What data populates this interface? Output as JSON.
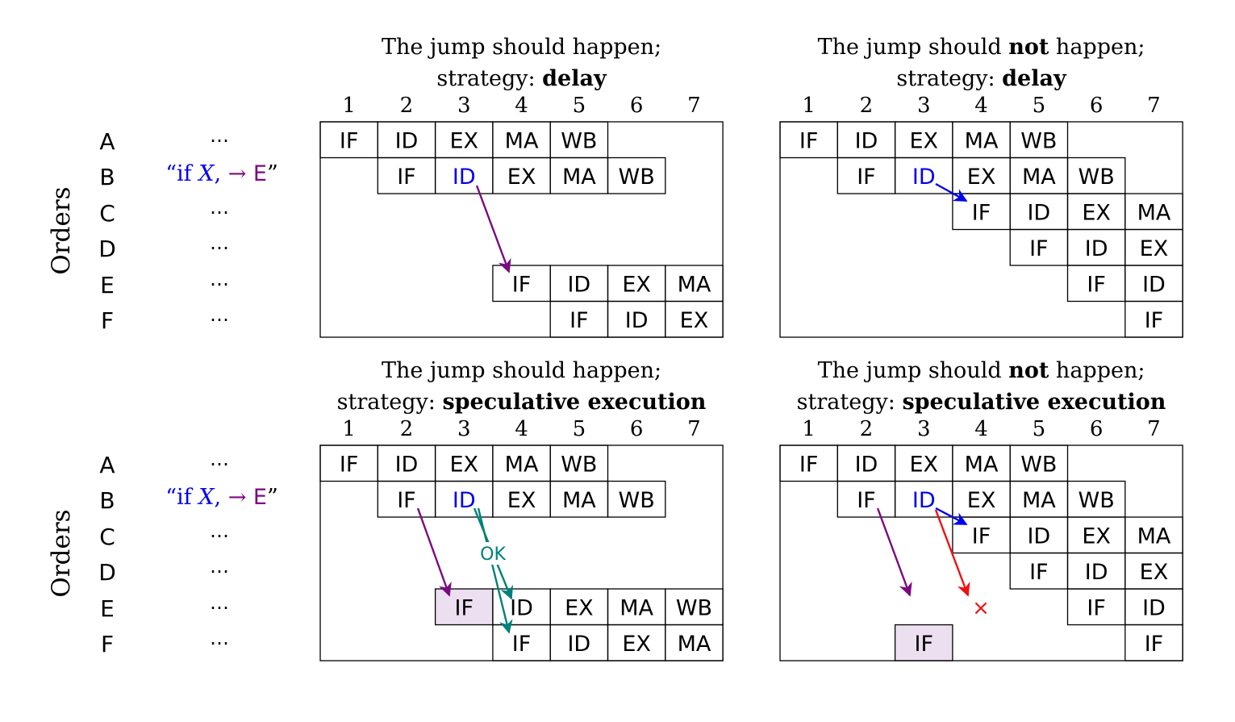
{
  "colors": {
    "blue": "#0000ee",
    "purple": "#7b0a80",
    "teal": "#00807a",
    "red": "#ee1111",
    "highlight": "#ecdff0",
    "black": "#000000"
  },
  "row_labels": [
    "A",
    "B",
    "C",
    "D",
    "E",
    "F"
  ],
  "y_axis_label": "Orders",
  "instructions": {
    "ellipsis": "⋯",
    "branch": {
      "open_quote": "“",
      "if": "if",
      "x": "X",
      "comma": ",",
      "arrow": "→",
      "target": "E",
      "close_quote": "”"
    }
  },
  "columns": [
    "1",
    "2",
    "3",
    "4",
    "5",
    "6",
    "7"
  ],
  "panels": [
    {
      "id": "tl",
      "title_line1_pre": "The jump should ",
      "title_line1_bold": "",
      "title_line1_post": "happen;",
      "title_line2_pre": "strategy: ",
      "title_line2_bold": "delay",
      "stages": [
        [
          "IF",
          "ID",
          "EX",
          "MA",
          "WB",
          "",
          ""
        ],
        [
          "",
          "IF",
          "ID",
          "EX",
          "MA",
          "WB",
          ""
        ],
        [
          "",
          "",
          "",
          "",
          "",
          "",
          ""
        ],
        [
          "",
          "",
          "",
          "",
          "",
          "",
          ""
        ],
        [
          "",
          "",
          "",
          "IF",
          "ID",
          "EX",
          "MA"
        ],
        [
          "",
          "",
          "",
          "",
          "IF",
          "ID",
          "EX"
        ]
      ],
      "blue_cell": [
        1,
        2
      ],
      "highlight_cell": null,
      "annotations": []
    },
    {
      "id": "tr",
      "title_line1_pre": "The jump should ",
      "title_line1_bold": "not",
      "title_line1_post": " happen;",
      "title_line2_pre": "strategy: ",
      "title_line2_bold": "delay",
      "stages": [
        [
          "IF",
          "ID",
          "EX",
          "MA",
          "WB",
          "",
          ""
        ],
        [
          "",
          "IF",
          "ID",
          "EX",
          "MA",
          "WB",
          ""
        ],
        [
          "",
          "",
          "",
          "IF",
          "ID",
          "EX",
          "MA"
        ],
        [
          "",
          "",
          "",
          "",
          "IF",
          "ID",
          "EX"
        ],
        [
          "",
          "",
          "",
          "",
          "",
          "IF",
          "ID"
        ],
        [
          "",
          "",
          "",
          "",
          "",
          "",
          "IF"
        ]
      ],
      "blue_cell": [
        1,
        2
      ],
      "highlight_cell": null,
      "annotations": []
    },
    {
      "id": "bl",
      "title_line1_pre": "The jump should ",
      "title_line1_bold": "",
      "title_line1_post": "happen;",
      "title_line2_pre": "strategy: ",
      "title_line2_bold": "speculative execution",
      "stages": [
        [
          "IF",
          "ID",
          "EX",
          "MA",
          "WB",
          "",
          ""
        ],
        [
          "",
          "IF",
          "ID",
          "EX",
          "MA",
          "WB",
          ""
        ],
        [
          "",
          "",
          "",
          "",
          "",
          "",
          ""
        ],
        [
          "",
          "",
          "",
          "",
          "",
          "",
          ""
        ],
        [
          "",
          "",
          "IF",
          "ID",
          "EX",
          "MA",
          "WB"
        ],
        [
          "",
          "",
          "",
          "IF",
          "ID",
          "EX",
          "MA"
        ]
      ],
      "blue_cell": [
        1,
        2
      ],
      "highlight_cell": [
        4,
        2
      ],
      "annotations": [
        "OK"
      ]
    },
    {
      "id": "br",
      "title_line1_pre": "The jump should ",
      "title_line1_bold": "not",
      "title_line1_post": " happen;",
      "title_line2_pre": "strategy: ",
      "title_line2_bold": "speculative execution",
      "stages": [
        [
          "IF",
          "ID",
          "EX",
          "MA",
          "WB",
          "",
          ""
        ],
        [
          "",
          "IF",
          "ID",
          "EX",
          "MA",
          "WB",
          ""
        ],
        [
          "",
          "",
          "",
          "IF",
          "ID",
          "EX",
          "MA"
        ],
        [
          "",
          "",
          "",
          "",
          "IF",
          "ID",
          "EX"
        ],
        [
          "",
          "",
          "",
          "",
          "",
          "IF",
          "ID"
        ],
        [
          "",
          "",
          "IF",
          "",
          "",
          "",
          "IF"
        ]
      ],
      "blue_cell": [
        1,
        2
      ],
      "highlight_cell": [
        5,
        2
      ],
      "annotations": [
        "×"
      ]
    }
  ]
}
